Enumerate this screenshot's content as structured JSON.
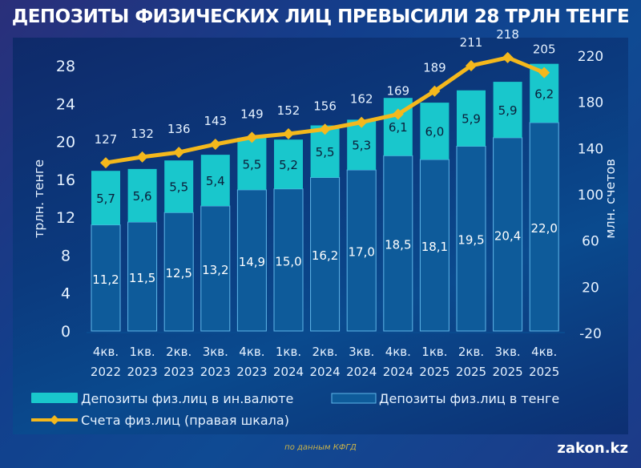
{
  "title": "ДЕПОЗИТЫ ФИЗИЧЕСКИХ ЛИЦ ПРЕВЫСИЛИ 28 ТРЛН ТЕНГЕ",
  "source": "по данным КФГД",
  "brand": "zakon.kz",
  "colors": {
    "foreign": "#19c7cc",
    "tenge": "#0e5b9a",
    "tenge_border": "#5fb6e8",
    "line": "#f4b81c",
    "text": "#e6f2ff",
    "dark_label": "#0b1e3a"
  },
  "chart_data": {
    "type": "bar",
    "stacked": true,
    "title": "ДЕПОЗИТЫ ФИЗИЧЕСКИХ ЛИЦ ПРЕВЫСИЛИ 28 ТРЛН ТЕНГЕ",
    "categories": [
      [
        "4кв.",
        "2022"
      ],
      [
        "1кв.",
        "2023"
      ],
      [
        "2кв.",
        "2023"
      ],
      [
        "3кв.",
        "2023"
      ],
      [
        "4кв.",
        "2023"
      ],
      [
        "1кв.",
        "2024"
      ],
      [
        "2кв.",
        "2024"
      ],
      [
        "3кв.",
        "2024"
      ],
      [
        "4кв.",
        "2024"
      ],
      [
        "1кв.",
        "2025"
      ],
      [
        "2кв.",
        "2025"
      ],
      [
        "3кв.",
        "2025"
      ],
      [
        "4кв.",
        "2025"
      ]
    ],
    "series": [
      {
        "name": "Депозиты физ.лиц в тенге",
        "axis": "left",
        "values": [
          11.2,
          11.5,
          12.5,
          13.2,
          14.9,
          15.0,
          16.2,
          17.0,
          18.5,
          18.1,
          19.5,
          20.4,
          22.0
        ],
        "labels": [
          "11,2",
          "11,5",
          "12,5",
          "13,2",
          "14,9",
          "15,0",
          "16,2",
          "17,0",
          "18,5",
          "18,1",
          "19,5",
          "20,4",
          "22,0"
        ]
      },
      {
        "name": "Депозиты физ.лиц в ин.валюте",
        "axis": "left",
        "values": [
          5.7,
          5.6,
          5.5,
          5.4,
          5.5,
          5.2,
          5.5,
          5.3,
          6.1,
          6.0,
          5.9,
          5.9,
          6.2
        ],
        "labels": [
          "5,7",
          "5,6",
          "5,5",
          "5,4",
          "5,5",
          "5,2",
          "5,5",
          "5,3",
          "6,1",
          "6,0",
          "5,9",
          "5,9",
          "6,2"
        ]
      },
      {
        "name": "Счета физ.лиц (правая шкала)",
        "type": "line",
        "axis": "right",
        "values": [
          127,
          132,
          136,
          143,
          149,
          152,
          156,
          162,
          169,
          189,
          211,
          218,
          205
        ],
        "labels": [
          "127",
          "132",
          "136",
          "143",
          "149",
          "152",
          "156",
          "162",
          "169",
          "189",
          "211",
          "218",
          "205"
        ]
      }
    ],
    "ylabel": "трлн. тенге",
    "ylim": [
      0,
      28
    ],
    "yticks": [
      "0",
      "4",
      "8",
      "12",
      "16",
      "20",
      "24",
      "28"
    ],
    "ytick_values": [
      0,
      4,
      8,
      12,
      16,
      20,
      24,
      28
    ],
    "y2label": "млн. счетов",
    "y2lim": [
      -20,
      220
    ],
    "y2ticks": [
      "-20",
      "20",
      "60",
      "100",
      "140",
      "180",
      "220"
    ],
    "y2tick_values": [
      -20,
      20,
      60,
      100,
      140,
      180,
      220
    ],
    "grid": false,
    "legend": {
      "position": "bottom",
      "entries": [
        "Депозиты физ.лиц в ин.валюте",
        "Депозиты физ.лиц в тенге",
        "Счета физ.лиц (правая шкала)"
      ]
    }
  }
}
